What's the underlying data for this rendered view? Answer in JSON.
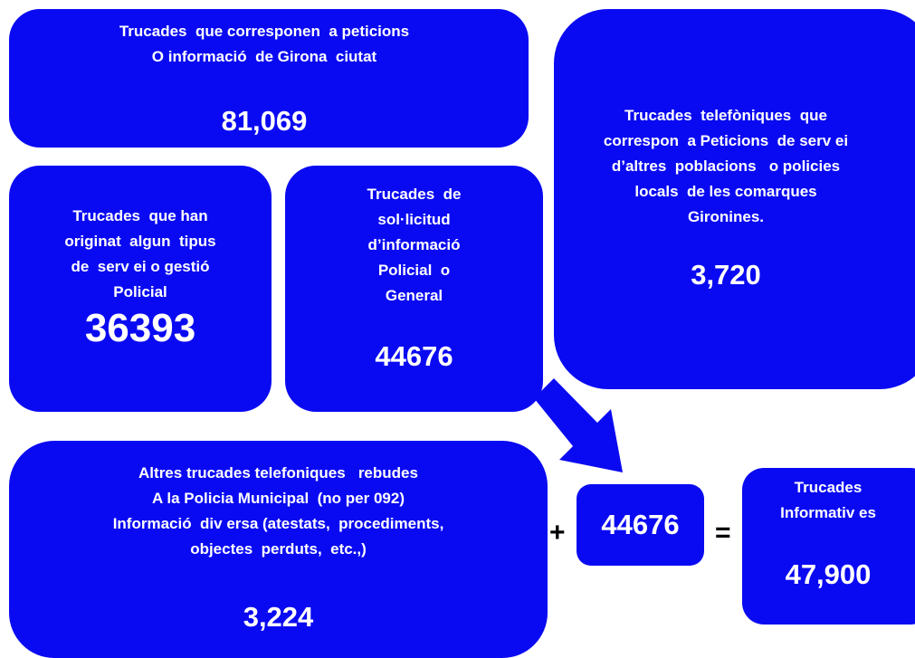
{
  "boxes": [
    {
      "lines": [
        "Trucades  que corresponen  a peticions",
        "O informació  de Girona  ciutat"
      ],
      "value": "81,069"
    },
    {
      "lines": [
        "Trucades  que han",
        "originat  algun  tipus",
        "de  serv ei o gestió",
        "Policial"
      ],
      "value": "36393"
    },
    {
      "lines": [
        "Trucades  de",
        "sol·licitud",
        "d’informació",
        "Policial  o",
        "General"
      ],
      "value": "44676"
    },
    {
      "lines": [
        "Trucades  telefòniques  que",
        "correspon  a Peticions  de serv ei",
        "d’altres  poblacions   o policies",
        "locals  de les comarques",
        "Gironines."
      ],
      "value": "3,720"
    },
    {
      "lines": [
        "Altres trucades telefoniques   rebudes",
        "A la Policia Municipal  (no per 092)",
        "Informació  div ersa (atestats,  procediments,",
        "objectes  perduts,  etc.,)"
      ],
      "value": "3,224"
    },
    {
      "lines": [],
      "value": "44676"
    },
    {
      "lines": [
        "Trucades",
        "Informativ es"
      ],
      "value": "47,900"
    }
  ],
  "operators": {
    "plus": "+",
    "equals": "="
  }
}
